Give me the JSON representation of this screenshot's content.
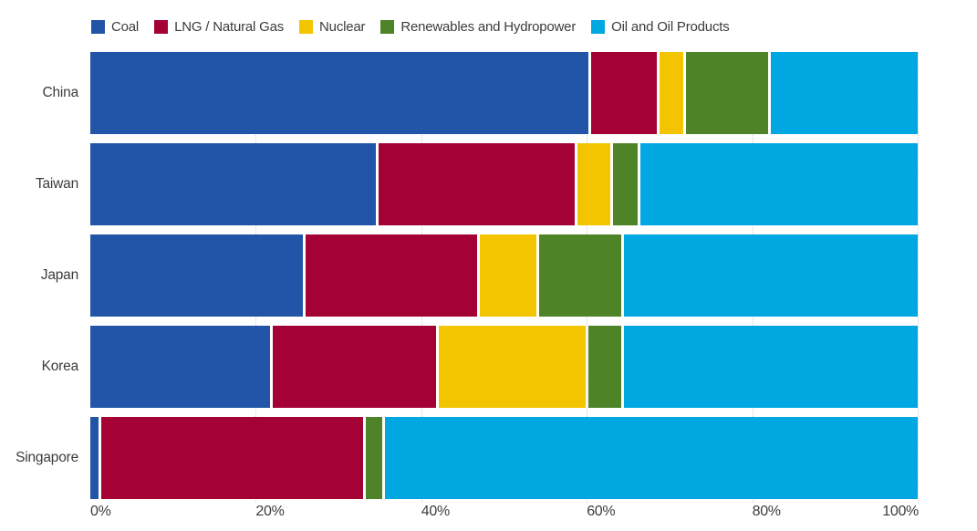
{
  "chart_data": {
    "type": "bar",
    "orientation": "horizontal",
    "stacked": true,
    "unit": "percent",
    "title": "",
    "categories": [
      "China",
      "Taiwan",
      "Japan",
      "Korea",
      "Singapore"
    ],
    "series": [
      {
        "name": "Coal",
        "color": "#2255A7",
        "values": [
          61,
          35,
          26,
          22,
          1
        ]
      },
      {
        "name": "LNG / Natural Gas",
        "color": "#A40234",
        "values": [
          8,
          24,
          21,
          20,
          32
        ]
      },
      {
        "name": "Nuclear",
        "color": "#F2C500",
        "values": [
          3,
          4,
          7,
          18,
          0
        ]
      },
      {
        "name": "Renewables and Hydropower",
        "color": "#4F8327",
        "values": [
          10,
          3,
          10,
          4,
          2
        ]
      },
      {
        "name": "Oil and Oil Products",
        "color": "#00A7E1",
        "values": [
          18,
          34,
          36,
          36,
          65
        ]
      }
    ],
    "x_axis": {
      "tick_labels": [
        "0%",
        "20%",
        "40%",
        "60%",
        "80%",
        "100%"
      ],
      "tick_values": [
        0,
        20,
        40,
        60,
        80,
        100
      ],
      "range": [
        0,
        100
      ]
    },
    "legend_position": "top",
    "grid": {
      "vertical_dotted_lines_at": [
        20,
        40,
        60,
        80,
        100
      ]
    }
  },
  "styles": {
    "background": "#FFFFFF",
    "text_color": "#3C3C3C",
    "grid_color": "#CFCFCF"
  }
}
